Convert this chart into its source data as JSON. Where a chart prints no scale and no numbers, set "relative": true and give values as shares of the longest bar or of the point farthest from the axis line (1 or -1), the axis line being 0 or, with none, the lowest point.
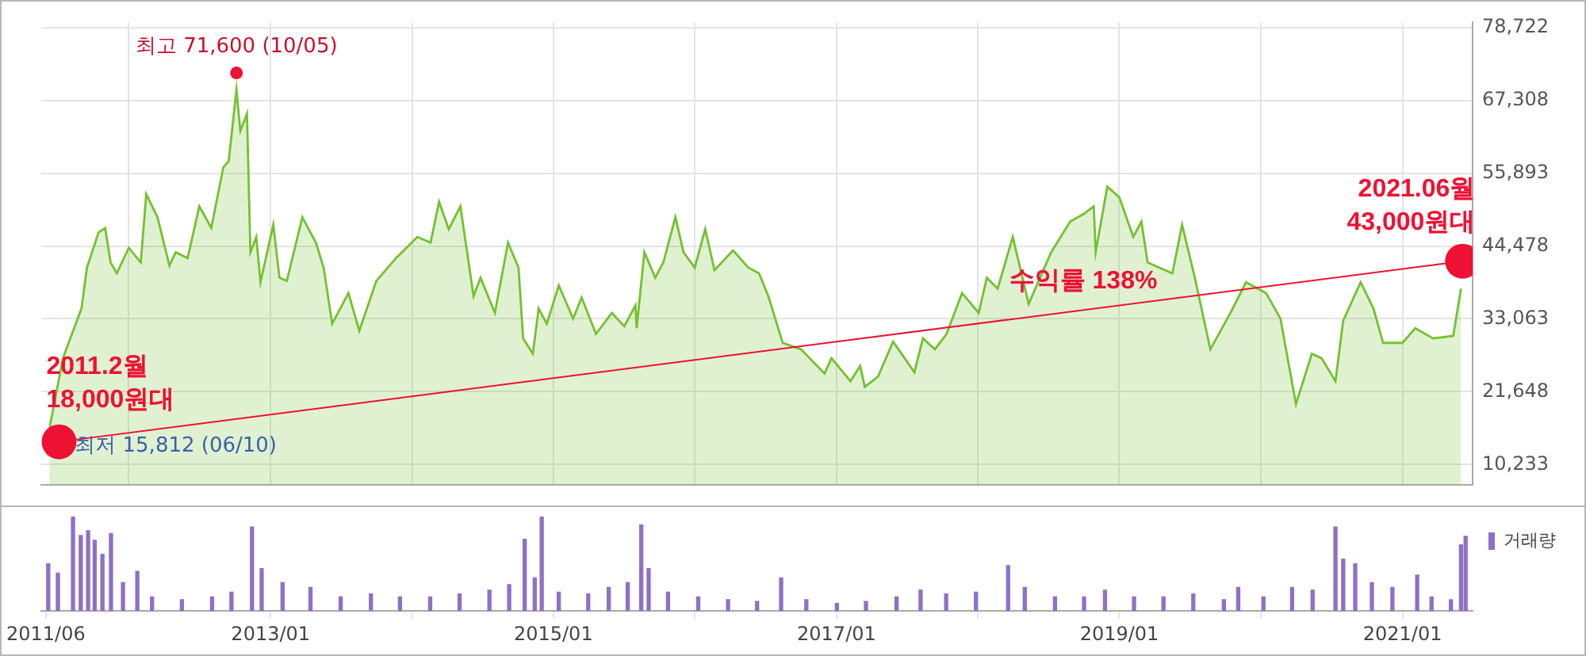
{
  "chart_data": [
    {
      "type": "area",
      "xlim": [
        "2011-05-20",
        "2021-07-01"
      ],
      "xticks": [
        {
          "value": "2012-01-01",
          "label": null
        },
        {
          "value": "2013-01-01",
          "label": null
        },
        {
          "value": "2014-01-01",
          "label": null
        },
        {
          "value": "2015-01-01",
          "label": null
        },
        {
          "value": "2016-01-01",
          "label": null
        },
        {
          "value": "2017-01-01",
          "label": null
        },
        {
          "value": "2018-01-01",
          "label": null
        },
        {
          "value": "2019-01-01",
          "label": null
        },
        {
          "value": "2020-01-01",
          "label": null
        },
        {
          "value": "2021-01-01",
          "label": null
        }
      ],
      "ylim": [
        7100,
        79500
      ],
      "yticks": [
        {
          "value": 10233,
          "label": "10,233"
        },
        {
          "value": 21648,
          "label": "21,648"
        },
        {
          "value": 33063,
          "label": "33,063"
        },
        {
          "value": 44478,
          "label": "44,478"
        },
        {
          "value": 55893,
          "label": "55,893"
        },
        {
          "value": 67308,
          "label": "67,308"
        },
        {
          "value": 78722,
          "label": "78,722"
        }
      ],
      "grid": true,
      "tick_labels": "y",
      "series": [
        {
          "color": "#74c12f",
          "x": [
            "2011-06-10",
            "2011-07-15",
            "2011-09-01",
            "2011-09-15",
            "2011-10-15",
            "2011-11-01",
            "2011-11-15",
            "2011-12-01",
            "2012-01-01",
            "2012-02-01",
            "2012-02-15",
            "2012-03-15",
            "2012-04-15",
            "2012-05-01",
            "2012-06-01",
            "2012-07-01",
            "2012-08-01",
            "2012-09-01",
            "2012-09-15",
            "2012-10-05",
            "2012-10-15",
            "2012-11-01",
            "2012-11-10",
            "2012-11-25",
            "2012-12-06",
            "2013-01-08",
            "2013-01-24",
            "2013-02-12",
            "2013-03-24",
            "2013-04-28",
            "2013-05-18",
            "2013-06-09",
            "2013-07-21",
            "2013-08-18",
            "2013-10-01",
            "2013-11-21",
            "2014-01-15",
            "2014-02-18",
            "2014-03-12",
            "2014-04-06",
            "2014-05-06",
            "2014-06-09",
            "2014-06-27",
            "2014-08-03",
            "2014-09-06",
            "2014-10-03",
            "2014-10-15",
            "2014-11-09",
            "2014-11-24",
            "2014-12-15",
            "2015-01-15",
            "2015-02-21",
            "2015-03-15",
            "2015-04-21",
            "2015-06-01",
            "2015-07-03",
            "2015-08-01",
            "2015-08-04",
            "2015-08-24",
            "2015-09-21",
            "2015-10-12",
            "2015-11-12",
            "2015-12-03",
            "2016-01-01",
            "2016-01-28",
            "2016-02-21",
            "2016-04-09",
            "2016-05-18",
            "2016-06-15",
            "2016-07-09",
            "2016-08-15",
            "2016-10-01",
            "2016-12-01",
            "2016-12-19",
            "2017-02-06",
            "2017-03-03",
            "2017-03-15",
            "2017-04-18",
            "2017-05-27",
            "2017-07-21",
            "2017-08-12",
            "2017-09-12",
            "2017-10-12",
            "2017-11-21",
            "2018-01-03",
            "2018-01-24",
            "2018-02-21",
            "2018-04-01",
            "2018-05-12",
            "2018-07-09",
            "2018-08-27",
            "2018-10-01",
            "2018-10-27",
            "2018-11-01",
            "2018-12-01",
            "2019-01-01",
            "2019-02-06",
            "2019-02-27",
            "2019-03-15",
            "2019-05-18",
            "2019-06-12",
            "2019-07-15",
            "2019-08-24",
            "2019-10-15",
            "2019-11-24",
            "2020-01-15",
            "2020-02-21",
            "2020-04-01",
            "2020-05-12",
            "2020-06-06",
            "2020-07-12",
            "2020-08-01",
            "2020-09-15",
            "2020-10-18",
            "2020-11-12",
            "2021-01-01",
            "2021-02-03",
            "2021-03-21",
            "2021-05-12",
            "2021-06-01"
          ],
          "values": [
            15812,
            26900,
            34700,
            41100,
            46600,
            47300,
            41900,
            40200,
            44200,
            41900,
            52600,
            49000,
            41400,
            43500,
            42600,
            50700,
            47300,
            56800,
            57800,
            69000,
            62500,
            65200,
            43500,
            45900,
            38800,
            47800,
            39500,
            39000,
            49000,
            45000,
            41100,
            32300,
            37100,
            31200,
            39000,
            42600,
            45900,
            45000,
            51400,
            47100,
            50700,
            36600,
            39500,
            34000,
            45000,
            41100,
            30000,
            27600,
            34700,
            32300,
            38300,
            33100,
            36400,
            30700,
            34000,
            31900,
            35200,
            31600,
            43500,
            39500,
            41900,
            49000,
            43500,
            41100,
            47100,
            40700,
            43800,
            41100,
            40200,
            36600,
            29300,
            28300,
            24500,
            26900,
            23300,
            25700,
            22400,
            24000,
            29500,
            24700,
            30000,
            28300,
            30700,
            37100,
            34000,
            39500,
            37800,
            45900,
            35400,
            43500,
            48300,
            49500,
            50700,
            43500,
            53800,
            52100,
            45900,
            48300,
            41900,
            40200,
            47800,
            39500,
            28300,
            34000,
            38800,
            37100,
            33100,
            19700,
            27600,
            26900,
            23300,
            32800,
            38800,
            34700,
            29300,
            29300,
            31600,
            30000,
            30400,
            37800
          ]
        },
        {
          "type": "line",
          "color": "#ee1133",
          "marker": "circle",
          "x": [
            "2011-07-05",
            "2021-06-05"
          ],
          "values": [
            13800,
            42100
          ]
        },
        {
          "type": "scatter",
          "color": "#ee1133",
          "marker": "circle",
          "x": [
            "2012-10-05"
          ],
          "values": [
            71600
          ]
        }
      ],
      "annotations": [
        {
          "text": "최고 71,600 (10/05)",
          "x": "2012-10-05",
          "y": 71600
        },
        {
          "text": "최저 15,812 (06/10)",
          "x": "2011-06-10",
          "y": 15812
        },
        {
          "text": "2011.2월\n18,000원대",
          "x": "2011-07-05",
          "y": 13800
        },
        {
          "text": "2021.06월\n43,000원대",
          "x": "2021-06-05",
          "y": 42100
        },
        "수익률 138%"
      ]
    },
    {
      "type": "bar",
      "relative": true,
      "xlim": [
        "2011-05-20",
        "2021-07-01"
      ],
      "xticks": [
        {
          "value": "2011-06-01",
          "label": "2011/06"
        },
        {
          "value": "2013-01-01",
          "label": "2013/01"
        },
        {
          "value": "2014-01-01",
          "label": null
        },
        {
          "value": "2015-01-01",
          "label": "2015/01"
        },
        {
          "value": "2016-01-01",
          "label": null
        },
        {
          "value": "2017-01-01",
          "label": "2017/01"
        },
        {
          "value": "2018-01-01",
          "label": null
        },
        {
          "value": "2019-01-01",
          "label": "2019/01"
        },
        {
          "value": "2020-01-01",
          "label": null
        },
        {
          "value": "2021-01-01",
          "label": "2021/01"
        }
      ],
      "tick_labels": "x",
      "legend": "top right",
      "series": [
        {
          "name": "거래량",
          "color": "#8d71c4",
          "x": [
            "2011-06-07",
            "2011-07-02",
            "2011-08-10",
            "2011-08-30",
            "2011-09-18",
            "2011-10-05",
            "2011-10-25",
            "2011-11-16",
            "2011-12-17",
            "2012-01-23",
            "2012-03-01",
            "2012-05-17",
            "2012-08-03",
            "2012-09-22",
            "2012-11-14",
            "2012-12-09",
            "2013-02-01",
            "2013-04-14",
            "2013-07-01",
            "2013-09-17",
            "2013-12-01",
            "2014-02-17",
            "2014-05-04",
            "2014-07-20",
            "2014-09-09",
            "2014-10-19",
            "2014-11-14",
            "2014-12-02",
            "2015-01-15",
            "2015-04-01",
            "2015-05-24",
            "2015-07-12",
            "2015-08-16",
            "2015-09-04",
            "2015-10-24",
            "2016-01-10",
            "2016-03-27",
            "2016-06-10",
            "2016-08-11",
            "2016-10-15",
            "2017-01-02",
            "2017-03-18",
            "2017-06-05",
            "2017-08-06",
            "2017-10-11",
            "2017-12-27",
            "2018-03-20",
            "2018-05-02",
            "2018-07-19",
            "2018-10-02",
            "2018-11-25",
            "2019-02-08",
            "2019-04-25",
            "2019-07-11",
            "2019-09-28",
            "2019-11-04",
            "2020-01-08",
            "2020-03-22",
            "2020-05-14",
            "2020-07-12",
            "2020-08-01",
            "2020-09-01",
            "2020-10-14",
            "2020-12-06",
            "2021-02-08",
            "2021-03-17",
            "2021-05-06",
            "2021-06-01",
            "2021-06-13"
          ],
          "values": [
            0.5,
            0.4,
            1.0,
            0.8,
            0.85,
            0.75,
            0.6,
            0.82,
            0.3,
            0.42,
            0.15,
            0.12,
            0.15,
            0.2,
            0.89,
            0.45,
            0.3,
            0.25,
            0.15,
            0.18,
            0.15,
            0.15,
            0.18,
            0.22,
            0.28,
            0.76,
            0.35,
            1.0,
            0.2,
            0.18,
            0.25,
            0.3,
            0.91,
            0.45,
            0.2,
            0.15,
            0.12,
            0.1,
            0.35,
            0.12,
            0.08,
            0.1,
            0.15,
            0.22,
            0.18,
            0.2,
            0.48,
            0.25,
            0.15,
            0.15,
            0.22,
            0.15,
            0.15,
            0.18,
            0.12,
            0.25,
            0.15,
            0.25,
            0.22,
            0.89,
            0.55,
            0.5,
            0.3,
            0.25,
            0.38,
            0.15,
            0.12,
            0.7,
            0.79
          ]
        }
      ]
    }
  ]
}
